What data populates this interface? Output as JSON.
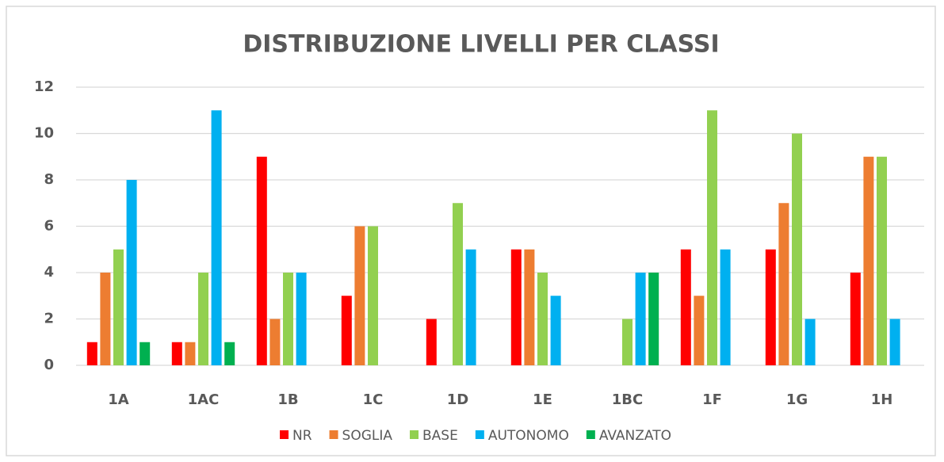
{
  "chart_data": {
    "type": "bar",
    "title": "DISTRIBUZIONE LIVELLI PER CLASSI",
    "categories": [
      "1A",
      "1AC",
      "1B",
      "1C",
      "1D",
      "1E",
      "1BC",
      "1F",
      "1G",
      "1H"
    ],
    "series": [
      {
        "name": "NR",
        "color": "#ff0000",
        "values": [
          1,
          1,
          9,
          3,
          2,
          5,
          0,
          5,
          5,
          4
        ]
      },
      {
        "name": "SOGLIA",
        "color": "#ed7d31",
        "values": [
          4,
          1,
          2,
          6,
          0,
          5,
          0,
          3,
          7,
          9
        ]
      },
      {
        "name": "BASE",
        "color": "#92d050",
        "values": [
          5,
          4,
          4,
          6,
          7,
          4,
          2,
          11,
          10,
          9
        ]
      },
      {
        "name": "AUTONOMO",
        "color": "#00b0f0",
        "values": [
          8,
          11,
          4,
          0,
          5,
          3,
          4,
          5,
          2,
          2
        ]
      },
      {
        "name": "AVANZATO",
        "color": "#00b050",
        "values": [
          1,
          1,
          0,
          0,
          0,
          0,
          4,
          0,
          0,
          0
        ]
      }
    ],
    "ylim": [
      0,
      12
    ],
    "yticks": [
      0,
      2,
      4,
      6,
      8,
      10,
      12
    ],
    "grid": true,
    "legend": "bottom"
  }
}
